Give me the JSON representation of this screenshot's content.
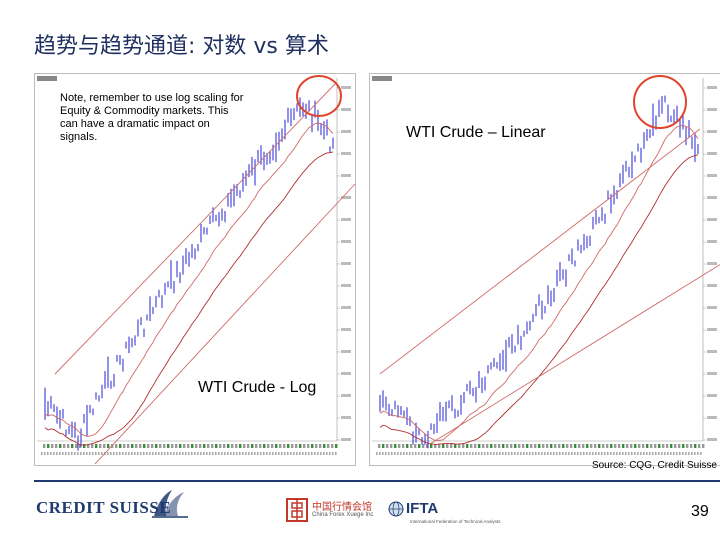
{
  "slide": {
    "title": "趋势与趋势通道: 对数 vs 算术",
    "note": "Note, remember to use log scaling for Equity & Commodity markets.  This can have a dramatic impact on signals.",
    "label_linear": "WTI Crude – Linear",
    "label_log": "WTI Crude - Log",
    "source": "Source: CQG, Credit Suisse",
    "page_number": "39"
  },
  "logos": {
    "credit_suisse": "CREDIT SUISSE",
    "cn_main": "中国行情会馆",
    "cn_sub": "China Forex Xuege Inc",
    "ifta": "IFTA",
    "ifta_sub": "International Federation of Technical Analysts"
  },
  "charts": {
    "left": {
      "corner": "Wk. XM2",
      "footer": "Rmfr:://\\w.b.kgfrmr.xw/ab5.hmsi/xwx/xgrm"
    },
    "right": {
      "corner": "Wk. XM2",
      "footer": "Rmfr:://\\w.b.kgfrmr.xw/ab5.hmsi/xwx/xgrm"
    }
  },
  "colors": {
    "title": "#1f2f5f",
    "price_bars": "#3a3ad6",
    "trend_lines": "#d06a6a",
    "circle": "#e0442c",
    "cs_blue": "#1f3a6e"
  }
}
